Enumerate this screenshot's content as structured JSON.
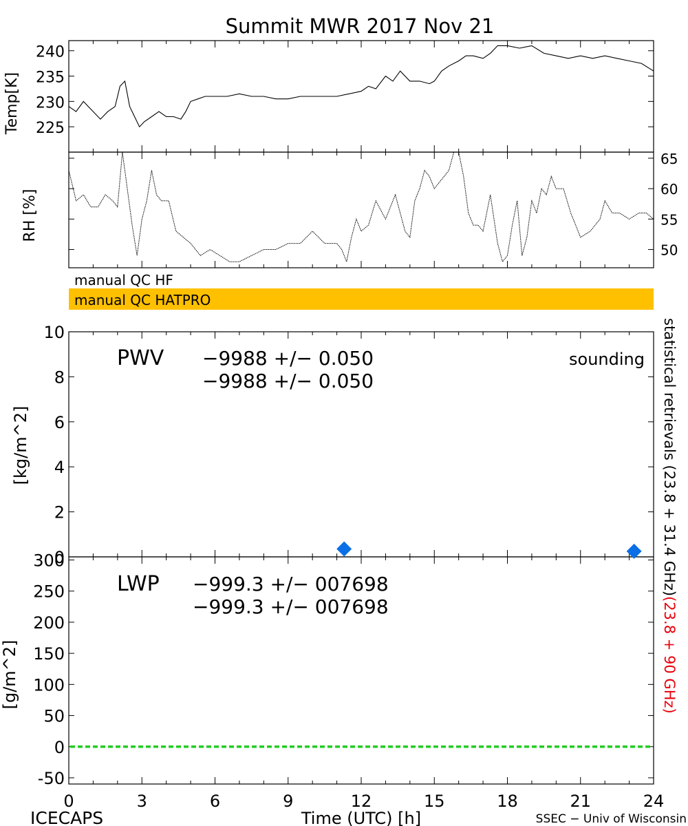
{
  "page": {
    "title": "Summit MWR 2017 Nov 21",
    "footer_left": "ICECAPS",
    "footer_right": "SSEC − Univ of Wisconsin",
    "xlabel": "Time (UTC) [h]"
  },
  "qc": {
    "hf_label": "manual QC HF",
    "hatpro_label": "manual QC HATPRO",
    "hatpro_color": "#FFC000"
  },
  "right_label": {
    "black": "statistical retrievals (23.8 + 31.4 GHz)",
    "red": "(23.8 + 90 GHz)"
  },
  "colors": {
    "red": "#E8000B",
    "blue": "#0A6EE6",
    "green": "#22CC22",
    "black": "#000000"
  },
  "chart_data": [
    {
      "type": "line",
      "id": "temp",
      "ylabel": "Temp[K]",
      "xlim": [
        0,
        24
      ],
      "ylim": [
        220,
        242
      ],
      "yticks": [
        225,
        230,
        235,
        240
      ],
      "series": [
        {
          "x": [
            0,
            0.3,
            0.6,
            0.8,
            1.0,
            1.3,
            1.6,
            1.9,
            2.1,
            2.3,
            2.5,
            2.7,
            2.9,
            3.1,
            3.4,
            3.7,
            4.0,
            4.3,
            4.6,
            4.8,
            5.0,
            5.3,
            5.6,
            6.0,
            6.5,
            7.0,
            7.5,
            8.0,
            8.5,
            9.0,
            9.5,
            10.0,
            10.5,
            11.0,
            11.5,
            12.0,
            12.3,
            12.6,
            13.0,
            13.3,
            13.6,
            14.0,
            14.4,
            14.8,
            15.0,
            15.3,
            15.6,
            16.0,
            16.3,
            16.6,
            17.0,
            17.3,
            17.6,
            18.0,
            18.5,
            19.0,
            19.5,
            20.0,
            20.5,
            21.0,
            21.5,
            22.0,
            22.5,
            23.0,
            23.5,
            24.0
          ],
          "y": [
            229,
            228,
            230,
            229,
            228,
            226.5,
            228,
            229,
            233,
            234,
            229,
            227,
            225,
            226,
            227,
            228,
            227,
            227,
            226.5,
            228,
            230,
            230.5,
            231,
            231,
            231,
            231.5,
            231,
            231,
            230.5,
            230.5,
            231,
            231,
            231,
            231,
            231.5,
            232,
            233,
            232.5,
            235,
            234,
            236,
            234,
            234,
            233.5,
            234,
            236,
            237,
            238,
            239,
            239,
            238.5,
            239.5,
            241,
            241,
            240.5,
            241,
            239.5,
            239,
            238.5,
            239,
            238.5,
            239,
            238.5,
            238,
            237.5,
            236
          ]
        }
      ]
    },
    {
      "type": "line",
      "id": "rh",
      "ylabel": "RH [%]",
      "xlim": [
        0,
        24
      ],
      "ylim": [
        47,
        66
      ],
      "yticks": [
        50,
        55,
        60,
        65
      ],
      "series": [
        {
          "x": [
            0,
            0.3,
            0.6,
            0.9,
            1.2,
            1.5,
            1.8,
            2.0,
            2.2,
            2.4,
            2.6,
            2.8,
            3.0,
            3.2,
            3.4,
            3.6,
            3.8,
            4.1,
            4.4,
            4.7,
            5.0,
            5.4,
            5.8,
            6.2,
            6.6,
            7.0,
            7.5,
            8.0,
            8.5,
            9.0,
            9.5,
            10.0,
            10.5,
            11.0,
            11.2,
            11.4,
            11.6,
            11.8,
            12.0,
            12.3,
            12.6,
            13.0,
            13.4,
            13.8,
            14.0,
            14.2,
            14.4,
            14.6,
            14.8,
            15.0,
            15.2,
            15.4,
            15.6,
            15.8,
            16.0,
            16.2,
            16.4,
            16.6,
            16.8,
            17.0,
            17.3,
            17.6,
            17.8,
            18.0,
            18.2,
            18.4,
            18.6,
            18.8,
            19.0,
            19.2,
            19.4,
            19.6,
            19.8,
            20.0,
            20.3,
            20.6,
            21.0,
            21.4,
            21.8,
            22.0,
            22.3,
            22.6,
            23.0,
            23.4,
            23.7,
            24.0
          ],
          "y": [
            63,
            58,
            59,
            57,
            57,
            59,
            58,
            57,
            66,
            60,
            54,
            49,
            55,
            58,
            63,
            59,
            58,
            58,
            53,
            52,
            51,
            49,
            50,
            49,
            48,
            48,
            49,
            50,
            50,
            51,
            51,
            53,
            51,
            51,
            50,
            48,
            52,
            55,
            53,
            54,
            58,
            55,
            59,
            53,
            52,
            58,
            60,
            63,
            62,
            60,
            61,
            62,
            63,
            66,
            66,
            62,
            56,
            54,
            54,
            53,
            59,
            51,
            48,
            49,
            54,
            58,
            49,
            52,
            58,
            56,
            60,
            59,
            62,
            60,
            60,
            56,
            52,
            53,
            55,
            58,
            56,
            56,
            55,
            56,
            56,
            55
          ]
        }
      ]
    },
    {
      "type": "scatter",
      "id": "pwv",
      "ylabel": "[kg/m^2]",
      "label": "PWV",
      "stat_black": "−9988 +/− 0.050",
      "stat_red": "−9988 +/− 0.050",
      "legend": "sounding",
      "xlim": [
        0,
        24
      ],
      "ylim": [
        0,
        10
      ],
      "yticks": [
        0,
        2,
        4,
        6,
        8,
        10
      ],
      "points": [
        {
          "x": 11.3,
          "y": 0.35
        },
        {
          "x": 23.2,
          "y": 0.25
        }
      ]
    },
    {
      "type": "line",
      "id": "lwp",
      "ylabel": "[g/m^2]",
      "label": "LWP",
      "stat_black": "−999.3 +/− 007698",
      "stat_red": "−999.3 +/− 007698",
      "xlim": [
        0,
        24
      ],
      "ylim": [
        -60,
        305
      ],
      "yticks": [
        -50,
        0,
        50,
        100,
        150,
        200,
        250,
        300
      ],
      "xticks": [
        0,
        3,
        6,
        9,
        12,
        15,
        18,
        21,
        24
      ],
      "zero_line": 0
    }
  ]
}
